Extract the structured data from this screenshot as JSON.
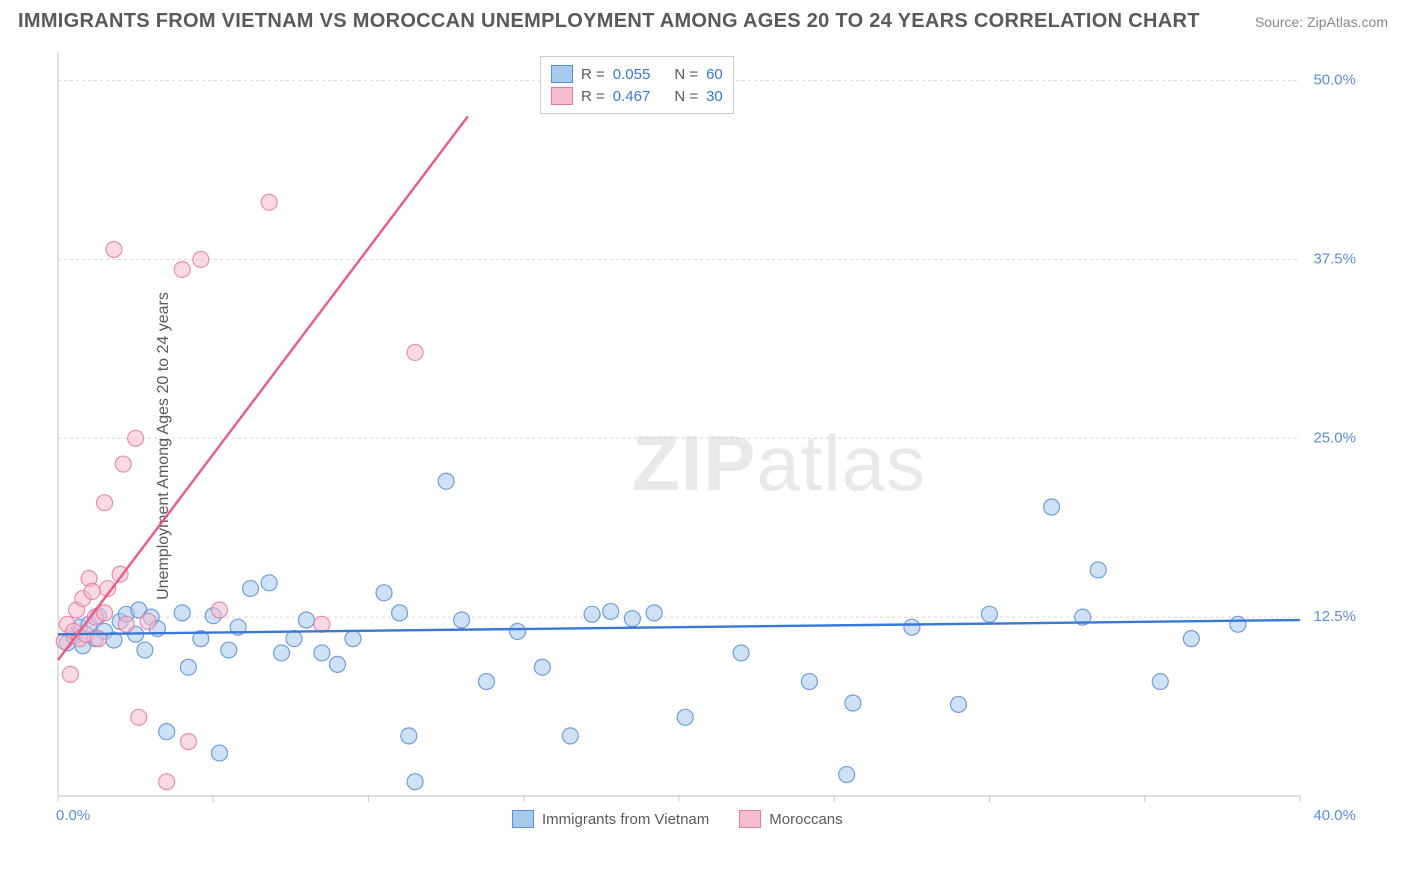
{
  "title": "IMMIGRANTS FROM VIETNAM VS MOROCCAN UNEMPLOYMENT AMONG AGES 20 TO 24 YEARS CORRELATION CHART",
  "source": "Source: ZipAtlas.com",
  "watermark_zip": "ZIP",
  "watermark_atlas": "atlas",
  "y_axis_label": "Unemployment Among Ages 20 to 24 years",
  "chart": {
    "type": "scatter",
    "background_color": "#ffffff",
    "grid_color": "#d7d7d7",
    "grid_dash": "3,3",
    "axis_line_color": "#cccccc",
    "tick_label_color": "#5a8fd8",
    "tick_fontsize": 15,
    "title_color": "#5a5a5a",
    "title_fontsize": 20,
    "xlim": [
      0,
      40
    ],
    "ylim": [
      0,
      52
    ],
    "x_ticks": [
      0,
      10,
      20,
      30,
      40
    ],
    "x_tick_labels": [
      "0.0%",
      "",
      "",
      "",
      "40.0%"
    ],
    "x_minor_ticks": [
      5,
      15,
      25,
      35
    ],
    "y_ticks": [
      12.5,
      25.0,
      37.5,
      50.0
    ],
    "y_tick_labels": [
      "12.5%",
      "25.0%",
      "37.5%",
      "50.0%"
    ],
    "marker_radius": 8,
    "marker_opacity": 0.55,
    "marker_stroke_width": 1.2,
    "trend_line_width": 2.4,
    "series": [
      {
        "name": "Immigrants from Vietnam",
        "fill_color": "#a6c9ec",
        "stroke_color": "#5a8fd8",
        "line_color": "#3a78d6",
        "R": "0.055",
        "N": "60",
        "trend": {
          "x1": 0,
          "y1": 11.3,
          "x2": 40,
          "y2": 12.3
        },
        "points": [
          [
            0.3,
            10.7
          ],
          [
            0.5,
            11.2
          ],
          [
            0.7,
            11.8
          ],
          [
            0.8,
            10.5
          ],
          [
            1.0,
            12.0
          ],
          [
            1.2,
            11.0
          ],
          [
            1.3,
            12.6
          ],
          [
            1.5,
            11.5
          ],
          [
            1.8,
            10.9
          ],
          [
            2.0,
            12.2
          ],
          [
            2.2,
            12.7
          ],
          [
            2.5,
            11.3
          ],
          [
            2.6,
            13.0
          ],
          [
            2.8,
            10.2
          ],
          [
            3.0,
            12.5
          ],
          [
            3.2,
            11.7
          ],
          [
            3.5,
            4.5
          ],
          [
            4.0,
            12.8
          ],
          [
            4.2,
            9.0
          ],
          [
            4.6,
            11.0
          ],
          [
            5.0,
            12.6
          ],
          [
            5.2,
            3.0
          ],
          [
            5.5,
            10.2
          ],
          [
            5.8,
            11.8
          ],
          [
            6.2,
            14.5
          ],
          [
            6.8,
            14.9
          ],
          [
            7.2,
            10.0
          ],
          [
            7.6,
            11.0
          ],
          [
            8.0,
            12.3
          ],
          [
            8.5,
            10.0
          ],
          [
            9.0,
            9.2
          ],
          [
            9.5,
            11.0
          ],
          [
            10.5,
            14.2
          ],
          [
            11.0,
            12.8
          ],
          [
            11.3,
            4.2
          ],
          [
            11.5,
            1.0
          ],
          [
            12.5,
            22.0
          ],
          [
            13.0,
            12.3
          ],
          [
            13.8,
            8.0
          ],
          [
            14.8,
            11.5
          ],
          [
            15.6,
            9.0
          ],
          [
            16.5,
            4.2
          ],
          [
            17.2,
            12.7
          ],
          [
            17.8,
            12.9
          ],
          [
            18.5,
            12.4
          ],
          [
            19.2,
            12.8
          ],
          [
            20.2,
            5.5
          ],
          [
            22.0,
            10.0
          ],
          [
            24.2,
            8.0
          ],
          [
            25.4,
            1.5
          ],
          [
            25.6,
            6.5
          ],
          [
            27.5,
            11.8
          ],
          [
            29.0,
            6.4
          ],
          [
            30.0,
            12.7
          ],
          [
            32.0,
            20.2
          ],
          [
            33.0,
            12.5
          ],
          [
            33.5,
            15.8
          ],
          [
            35.5,
            8.0
          ],
          [
            38.0,
            12.0
          ],
          [
            36.5,
            11.0
          ]
        ]
      },
      {
        "name": "Moroccans",
        "fill_color": "#f4bccd",
        "stroke_color": "#e87b9f",
        "line_color": "#ec5a8a",
        "R": "0.467",
        "N": "30",
        "trend": {
          "x1": 0,
          "y1": 9.5,
          "x2": 13.2,
          "y2": 47.5
        },
        "points": [
          [
            0.2,
            10.8
          ],
          [
            0.3,
            12.0
          ],
          [
            0.4,
            8.5
          ],
          [
            0.5,
            11.5
          ],
          [
            0.6,
            13.0
          ],
          [
            0.7,
            11.0
          ],
          [
            0.8,
            13.8
          ],
          [
            0.9,
            11.3
          ],
          [
            1.0,
            15.2
          ],
          [
            1.1,
            14.3
          ],
          [
            1.2,
            12.5
          ],
          [
            1.3,
            11.0
          ],
          [
            1.5,
            12.8
          ],
          [
            1.5,
            20.5
          ],
          [
            1.6,
            14.5
          ],
          [
            1.8,
            38.2
          ],
          [
            2.0,
            15.5
          ],
          [
            2.1,
            23.2
          ],
          [
            2.2,
            12.0
          ],
          [
            2.5,
            25.0
          ],
          [
            2.6,
            5.5
          ],
          [
            2.9,
            12.2
          ],
          [
            3.5,
            1.0
          ],
          [
            4.0,
            36.8
          ],
          [
            4.2,
            3.8
          ],
          [
            4.6,
            37.5
          ],
          [
            5.2,
            13.0
          ],
          [
            6.8,
            41.5
          ],
          [
            8.5,
            12.0
          ],
          [
            11.5,
            31.0
          ]
        ]
      }
    ]
  },
  "legend_top": {
    "r_label": "R =",
    "n_label": "N =",
    "value_color": "#3a78d6",
    "label_color": "#5a5a5a"
  },
  "legend_bottom": {
    "series1_label": "Immigrants from Vietnam",
    "series2_label": "Moroccans"
  }
}
